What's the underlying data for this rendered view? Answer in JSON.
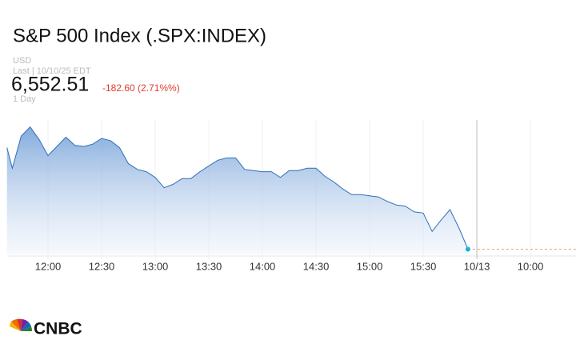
{
  "header": {
    "title": "S&P 500 Index (.SPX:INDEX)",
    "currency": "USD",
    "last_line": "Last | 10/10/25 EDT",
    "price": "6,552.51",
    "change": "-182.60 (2.71%%)",
    "range": "1 Day"
  },
  "logo": "CNBC",
  "chart_data": {
    "type": "area",
    "x": [
      697,
      700,
      705,
      710,
      715,
      720,
      725,
      730,
      735,
      740,
      745,
      750,
      755,
      760,
      765,
      770,
      775,
      780,
      785,
      790,
      795,
      800,
      805,
      810,
      815,
      820,
      825,
      830,
      835,
      840,
      845,
      850,
      855,
      860,
      865,
      870,
      875,
      880,
      885,
      890,
      895,
      900,
      905,
      910,
      915,
      920,
      925,
      930,
      935,
      940,
      945,
      950,
      955
    ],
    "series": [
      {
        "color": "#2f6fba",
        "values": [
          6641,
          6623,
          6651,
          6659,
          6648,
          6634,
          6642,
          6650,
          6643,
          6642,
          6644,
          6649,
          6647,
          6641,
          6627,
          6622,
          6620,
          6615,
          6606,
          6609,
          6614,
          6614,
          6620,
          6625,
          6630,
          6632,
          6632,
          6622,
          6621,
          6620,
          6620,
          6615,
          6621,
          6621,
          6623,
          6623,
          6616,
          6611,
          6605,
          6600,
          6600,
          6599,
          6598,
          6594,
          6591,
          6590,
          6585,
          6584,
          6568,
          6578,
          6587,
          6571,
          6552.51
        ]
      }
    ],
    "xlim": [
      697.6,
      1015.5
    ],
    "ylim": [
      6548,
      6665
    ],
    "xticks": [
      {
        "value": 720,
        "label": "12:00"
      },
      {
        "value": 750,
        "label": "12:30"
      },
      {
        "value": 780,
        "label": "13:00"
      },
      {
        "value": 810,
        "label": "13:30"
      },
      {
        "value": 840,
        "label": "14:00"
      },
      {
        "value": 870,
        "label": "14:30"
      },
      {
        "value": 900,
        "label": "15:00"
      },
      {
        "value": 930,
        "label": "15:30"
      },
      {
        "value": 960,
        "label": "10/13"
      },
      {
        "value": 990,
        "label": "10:00"
      }
    ],
    "grid": true
  }
}
